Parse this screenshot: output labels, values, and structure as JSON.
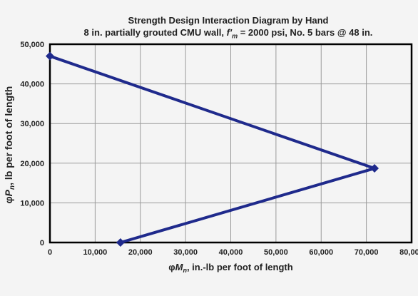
{
  "chart_data": {
    "type": "line",
    "title": "Strength Design Interaction Diagram by Hand",
    "subtitle": {
      "prefix": "8 in. partially grouted CMU wall, ",
      "fm_symbol": "f'",
      "fm_sub": "m",
      "suffix": " = 2000 psi, No. 5 bars @ 48 in."
    },
    "xlabel": {
      "phi": "φ",
      "symbol": "M",
      "sub": "n",
      "text": ", in.-lb per foot of length"
    },
    "ylabel": {
      "phi": "φ",
      "symbol": "P",
      "sub": "n",
      "text": ", lb per foot of length"
    },
    "xlim": [
      0,
      80000
    ],
    "ylim": [
      0,
      50000
    ],
    "x_ticks": [
      0,
      10000,
      20000,
      30000,
      40000,
      50000,
      60000,
      70000,
      80000
    ],
    "y_ticks": [
      0,
      10000,
      20000,
      30000,
      40000,
      50000
    ],
    "x_tick_labels": [
      "0",
      "10,000",
      "20,000",
      "30,000",
      "40,000",
      "50,000",
      "60,000",
      "70,000",
      "80,000"
    ],
    "y_tick_labels": [
      "0",
      "10,000",
      "20,000",
      "30,000",
      "40,000",
      "50,000"
    ],
    "grid": true,
    "series": [
      {
        "x": [
          0,
          71800,
          15600
        ],
        "y": [
          47000,
          18700,
          0
        ],
        "color": "#1f2a8c",
        "marker": "diamond"
      }
    ]
  }
}
